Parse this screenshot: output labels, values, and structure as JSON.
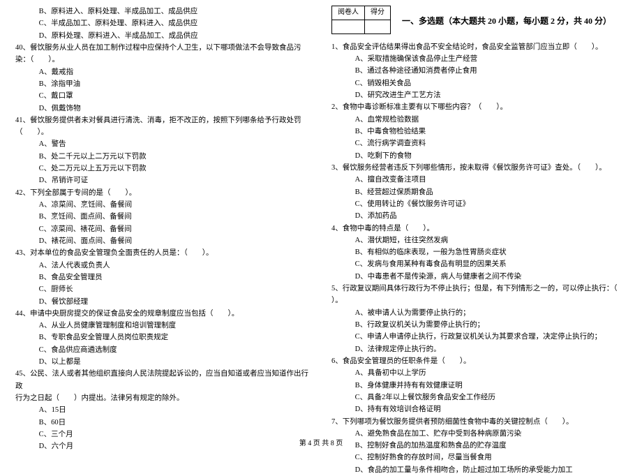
{
  "left": {
    "q39_opts": [
      "B、原料进入、原料处理、半成品加工、成品供应",
      "C、半成品加工、原料处理、原料进入、成品供应",
      "D、原料处理、原料进入、半成品加工、成品供应"
    ],
    "q40": {
      "stem": "40、餐饮服务从业人员在加工制作过程中应保持个人卫生，以下哪项做法不会导致食品污染：（　　）。",
      "opts": [
        "A、戴戒指",
        "B、涂指甲油",
        "C、戴口罩",
        "D、佩戴饰物"
      ]
    },
    "q41": {
      "stem": "41、餐饮服务提供者未对餐具进行清洗、消毒，拒不改正的，按照下列哪条给予行政处罚（　　）。",
      "opts": [
        "A、警告",
        "B、处二千元以上二万元以下罚款",
        "C、处二万元以上五万元以下罚款",
        "D、吊销许可证"
      ]
    },
    "q42": {
      "stem": "42、下列全部属于专间的是（　　）。",
      "opts": [
        "A、凉菜间、烹饪间、备餐间",
        "B、烹饪间、面点间、备餐间",
        "C、凉菜间、裱花间、备餐间",
        "D、裱花间、面点间、备餐间"
      ]
    },
    "q43": {
      "stem": "43、对本单位的食品安全管理负全面责任的人员是：（　　）。",
      "opts": [
        "A、法人代表或负责人",
        "B、食品安全管理员",
        "C、厨师长",
        "D、餐饮部经理"
      ]
    },
    "q44": {
      "stem": "44、申请中央厨房提交的保证食品安全的规章制度应当包括（　　）。",
      "opts": [
        "A、从业人员健康管理制度和培训管理制度",
        "B、专职食品安全管理人员岗位职责规定",
        "C、食品供应商遴选制度",
        "D、以上都是"
      ]
    },
    "q45": {
      "stem1": "45、公民、法人或者其他组织直接向人民法院提起诉讼的，应当自知道或者应当知道作出行政",
      "stem2": "行为之日起（　　）内提出。法律另有规定的除外。",
      "opts": [
        "A、15日",
        "B、60日",
        "C、三个月",
        "D、六个月"
      ]
    }
  },
  "right": {
    "scorebox": {
      "h1": "阅卷人",
      "h2": "得分"
    },
    "section_title": "一、多选题（本大题共 20 小题，每小题 2 分，共 40 分）",
    "q1": {
      "stem": "1、食品安全评估结果得出食品不安全结论时，食品安全监管部门应当立即（　　）。",
      "opts": [
        "A、采取措施确保该食品停止生产经营",
        "B、通过各种途径通知消费者停止食用",
        "C、销毁相关食品",
        "D、研究改进生产工艺方法"
      ]
    },
    "q2": {
      "stem": "2、食物中毒诊断标准主要有以下哪些内容？（　　）。",
      "opts": [
        "A、血常规检验数据",
        "B、中毒食物检验结果",
        "C、流行病学调查资料",
        "D、吃剩下的食物"
      ]
    },
    "q3": {
      "stem": "3、餐饮服务经营者违反下列哪些情形，按未取得《餐饮服务许可证》查处。（　　）。",
      "opts": [
        "A、擅自改变备注项目",
        "B、经营超过保质期食品",
        "C、使用转让的《餐饮服务许可证》",
        "D、添加药品"
      ]
    },
    "q4": {
      "stem": "4、食物中毒的特点是（　　）。",
      "opts": [
        "A、潜伏期短，往往突然发病",
        "B、有相似的临床表现，一般为急性胃肠炎症状",
        "C、发病与食用某种有毒食品有明显的因果关系",
        "D、中毒患者不是传染源，病人与健康者之间不传染"
      ]
    },
    "q5": {
      "stem1": "5、行政复议期间具体行政行为不停止执行；但是，有下列情形之一的，可以停止执行：（　",
      "stem2": "）。",
      "opts": [
        "A、被申请人认为需要停止执行的；",
        "B、行政复议机关认为需要停止执行的；",
        "C、申请人申请停止执行，行政复议机关认为其要求合理，决定停止执行的；",
        "D、法律规定停止执行的。"
      ]
    },
    "q6": {
      "stem": "6、食品安全管理员的任职条件是（　　）。",
      "opts": [
        "A、具备初中以上学历",
        "B、身体健康并持有有效健康证明",
        "C、具备2年以上餐饮服务食品安全工作经历",
        "D、持有有效培训合格证明"
      ]
    },
    "q7": {
      "stem": "7、下列哪项为餐饮服务提供者预防细菌性食物中毒的关键控制点（　　）。",
      "opts": [
        "A、避免熟食品在加工、贮存中受到各种病原菌污染",
        "B、控制好食品的加热温度和熟食品的贮存温度",
        "C、控制好熟食的存放时间，尽量当餐食用",
        "D、食品的加工量与条件相吻合，防止超过加工场所的承受能力加工"
      ]
    }
  },
  "footer": "第 4 页 共 8 页"
}
